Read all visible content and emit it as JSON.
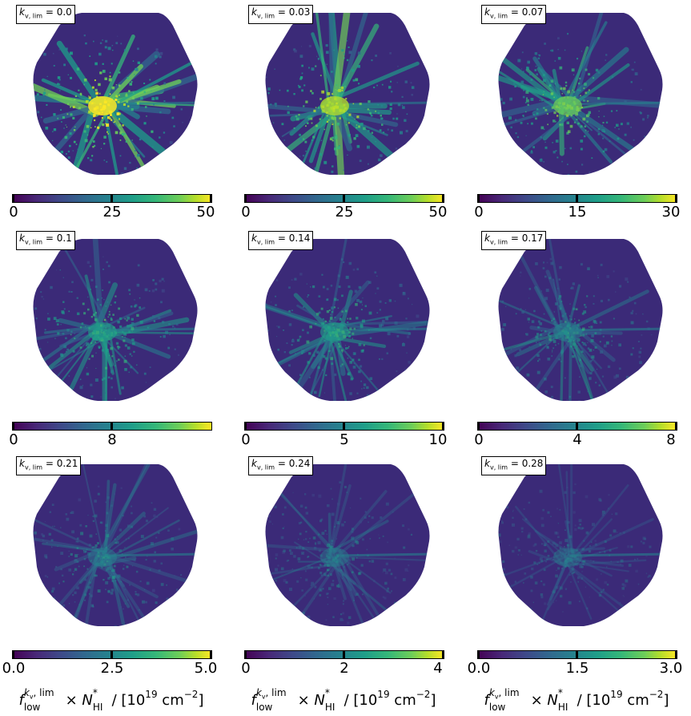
{
  "chart_data": {
    "type": "heatmap",
    "colormap": "viridis",
    "colorbar_label": "f_low^{k_v,lim} × N*_HI / [10^19 cm^-2]",
    "panels": [
      {
        "k_v_lim": "0.0",
        "label": "k_{v,lim} = 0.0",
        "cbar_range": [
          0,
          50
        ],
        "ticks": [
          "0",
          "25",
          "50"
        ]
      },
      {
        "k_v_lim": "0.03",
        "label": "k_{v,lim} = 0.03",
        "cbar_range": [
          0,
          50
        ],
        "ticks": [
          "0",
          "25",
          "50"
        ]
      },
      {
        "k_v_lim": "0.07",
        "label": "k_{v,lim} = 0.07",
        "cbar_range": [
          0,
          30
        ],
        "ticks": [
          "0",
          "15",
          "30"
        ]
      },
      {
        "k_v_lim": "0.1",
        "label": "k_{v,lim} = 0.1",
        "cbar_range": [
          0,
          16
        ],
        "ticks": [
          "0",
          "8"
        ]
      },
      {
        "k_v_lim": "0.14",
        "label": "k_{v,lim} = 0.14",
        "cbar_range": [
          0,
          10
        ],
        "ticks": [
          "0",
          "5",
          "10"
        ]
      },
      {
        "k_v_lim": "0.17",
        "label": "k_{v,lim} = 0.17",
        "cbar_range": [
          0,
          8
        ],
        "ticks": [
          "0",
          "4",
          "8"
        ]
      },
      {
        "k_v_lim": "0.21",
        "label": "k_{v,lim} = 0.21",
        "cbar_range": [
          0.0,
          5.0
        ],
        "ticks": [
          "0.0",
          "2.5",
          "5.0"
        ]
      },
      {
        "k_v_lim": "0.24",
        "label": "k_{v,lim} = 0.24",
        "cbar_range": [
          0,
          4
        ],
        "ticks": [
          "0",
          "2",
          "4"
        ]
      },
      {
        "k_v_lim": "0.28",
        "label": "k_{v,lim} = 0.28",
        "cbar_range": [
          0.0,
          3.0
        ],
        "ticks": [
          "0.0",
          "1.5",
          "3.0"
        ]
      }
    ],
    "intensity": [
      1.0,
      0.85,
      0.75,
      0.6,
      0.55,
      0.45,
      0.35,
      0.25,
      0.2
    ]
  },
  "labels": {
    "k_sym": "k",
    "k_sub": "v, lim",
    "eq": " = ",
    "xlabel_f": "f",
    "xlabel_sup": "k",
    "xlabel_sup2": "v",
    "xlabel_sup3": ", lim",
    "xlabel_sub": "low",
    "xlabel_times": " × N",
    "xlabel_nsup": "*",
    "xlabel_nsub": "HI",
    "xlabel_units": " / [10",
    "xlabel_exp": "19",
    "xlabel_cm": " cm",
    "xlabel_cmexp": "−2",
    "xlabel_close": "]"
  }
}
